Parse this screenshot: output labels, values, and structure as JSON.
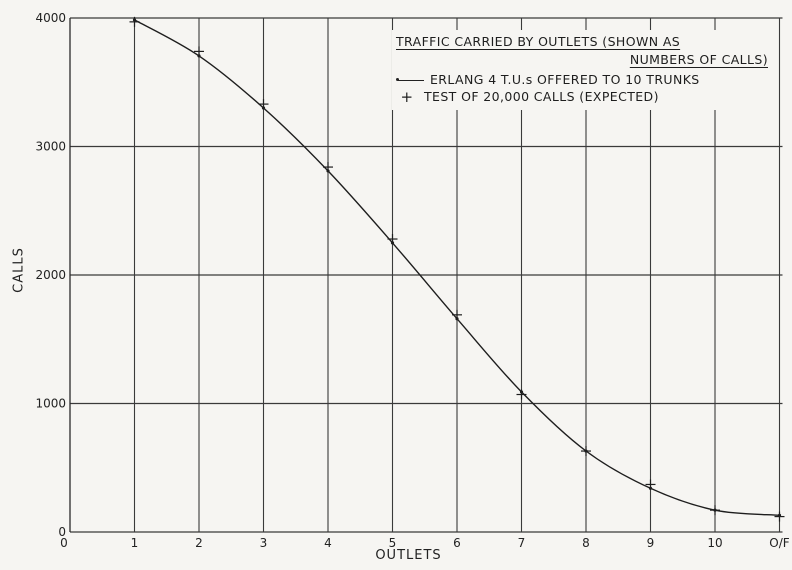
{
  "chart_data": {
    "type": "line",
    "title_line1": "TRAFFIC CARRIED BY OUTLETS (SHOWN AS",
    "title_line2": "NUMBERS OF CALLS)",
    "xlabel": "OUTLETS",
    "ylabel": "CALLS",
    "categories": [
      "1",
      "2",
      "3",
      "4",
      "5",
      "6",
      "7",
      "8",
      "9",
      "10",
      "O/F"
    ],
    "x_ticks": [
      "0",
      "1",
      "2",
      "3",
      "4",
      "5",
      "6",
      "7",
      "8",
      "9",
      "10",
      "O/F"
    ],
    "y_ticks": [
      "0",
      "1000",
      "2000",
      "3000",
      "4000"
    ],
    "ylim": [
      0,
      4000
    ],
    "grid": true,
    "legend_position": "top-right",
    "series": [
      {
        "name": "ERLANG 4 T.U.s OFFERED TO 10 TRUNKS",
        "style": "line",
        "values": [
          3985,
          3705,
          3300,
          2810,
          2250,
          1660,
          1090,
          630,
          340,
          170,
          130
        ]
      },
      {
        "name": "TEST OF 20,000 CALLS (EXPECTED)",
        "style": "plus",
        "values": [
          3970,
          3740,
          3330,
          2840,
          2280,
          1690,
          1070,
          630,
          370,
          170,
          120
        ]
      }
    ]
  }
}
